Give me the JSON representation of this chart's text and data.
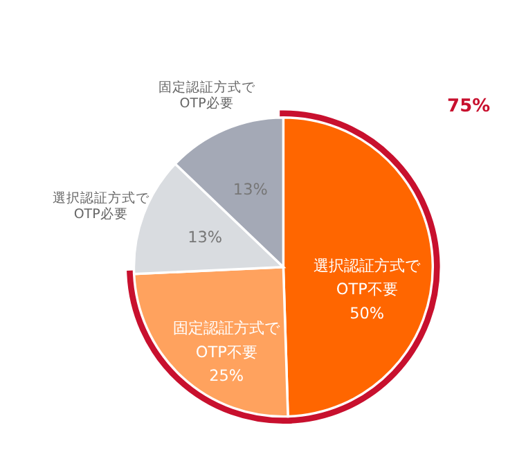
{
  "chart_data": {
    "type": "pie",
    "categories": [
      "選択認証方式で\nOTP不要",
      "固定認証方式で\nOTP不要",
      "選択認証方式で\nOTP必要",
      "固定認証方式で\nOTP必要"
    ],
    "values": [
      50,
      25,
      13,
      13
    ],
    "value_labels": [
      "50%",
      "25%",
      "13%",
      "13%"
    ],
    "colors": [
      "#ff6600",
      "#ffa25e",
      "#d9dce0",
      "#a4a9b6"
    ],
    "annotations": [
      "75%"
    ],
    "legend": false
  }
}
